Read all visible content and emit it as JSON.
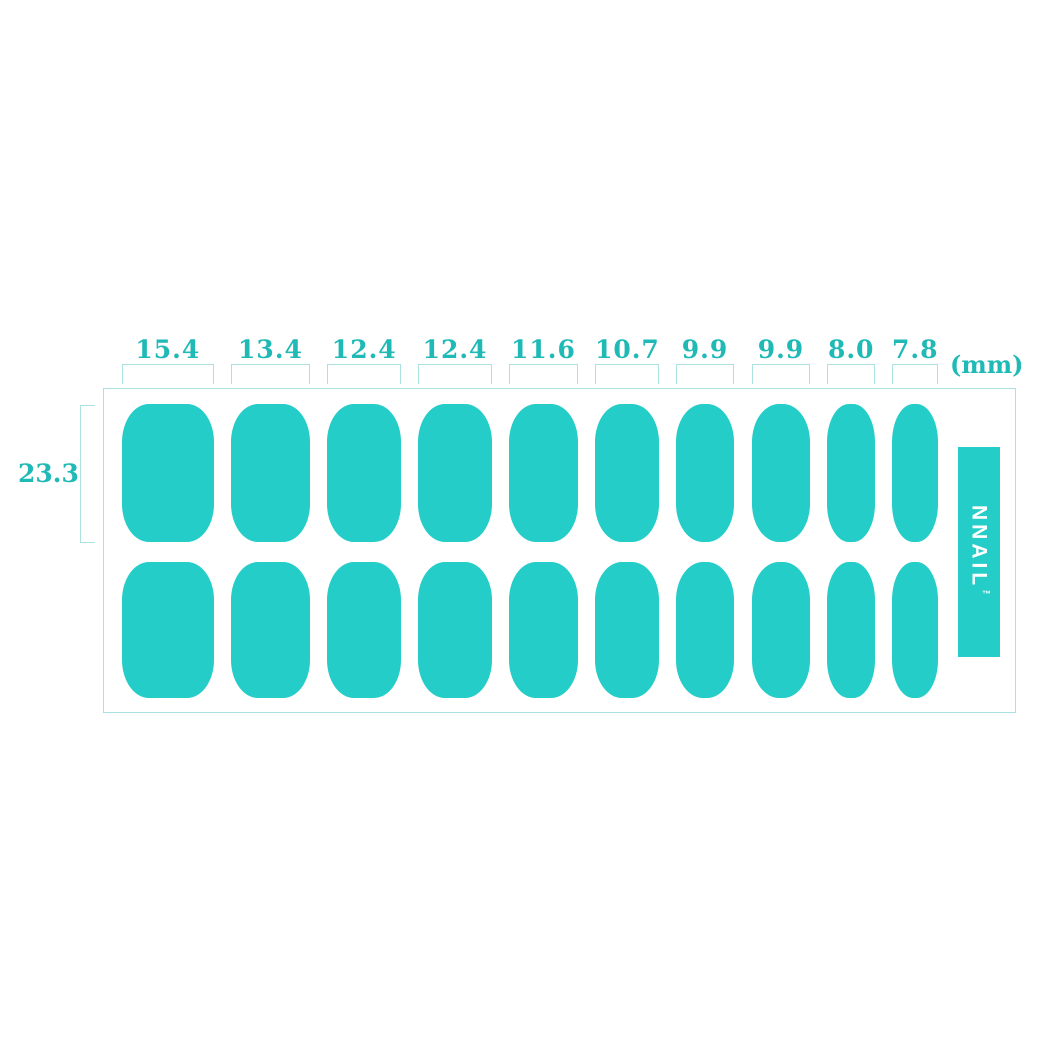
{
  "unit_label": "(mm)",
  "nail_height_mm": "23.3",
  "nail_widths_mm": [
    "15.4",
    "13.4",
    "12.4",
    "12.4",
    "11.6",
    "10.7",
    "9.9",
    "9.9",
    "8.0",
    "7.8"
  ],
  "brand": {
    "name": "NNAIL",
    "trademark": "™"
  },
  "sheet": {
    "rows": 2,
    "nails_per_row": 10
  },
  "colors": {
    "nail_teal": "#24cdc7",
    "label_teal": "#1fb9b6",
    "line_teal": "#abe2e0",
    "logo_text": "#ffffff",
    "background": "#ffffff"
  }
}
